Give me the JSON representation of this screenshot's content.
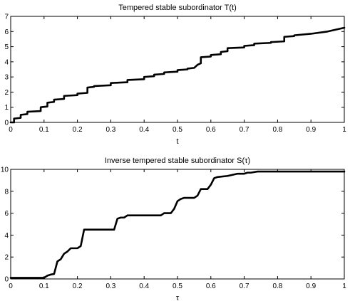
{
  "chart_data": [
    {
      "type": "line",
      "title": "Tempered stable subordinator T(t)",
      "xlabel": "t",
      "ylabel": "",
      "xlim": [
        0,
        1
      ],
      "ylim": [
        0,
        7
      ],
      "xticks": [
        "0",
        "0.1",
        "0.2",
        "0.3",
        "0.4",
        "0.5",
        "0.6",
        "0.7",
        "0.8",
        "0.9",
        "1"
      ],
      "yticks": [
        "0",
        "1",
        "2",
        "3",
        "4",
        "5",
        "6",
        "7"
      ],
      "grid": false,
      "series": [
        {
          "x": [
            0,
            0.01,
            0.01,
            0.03,
            0.03,
            0.05,
            0.05,
            0.09,
            0.09,
            0.11,
            0.11,
            0.13,
            0.13,
            0.16,
            0.16,
            0.2,
            0.2,
            0.23,
            0.23,
            0.25,
            0.25,
            0.3,
            0.3,
            0.35,
            0.35,
            0.4,
            0.4,
            0.43,
            0.43,
            0.46,
            0.46,
            0.5,
            0.5,
            0.53,
            0.53,
            0.55,
            0.56,
            0.57,
            0.57,
            0.6,
            0.6,
            0.63,
            0.63,
            0.65,
            0.65,
            0.7,
            0.7,
            0.73,
            0.73,
            0.78,
            0.78,
            0.82,
            0.82,
            0.85,
            0.85,
            0.9,
            0.95,
            0.97,
            1.0
          ],
          "y": [
            0,
            0,
            0.25,
            0.3,
            0.5,
            0.55,
            0.7,
            0.75,
            1.0,
            1.05,
            1.3,
            1.35,
            1.5,
            1.55,
            1.75,
            1.8,
            1.9,
            1.95,
            2.3,
            2.35,
            2.4,
            2.45,
            2.6,
            2.65,
            2.8,
            2.85,
            3.0,
            3.05,
            3.15,
            3.2,
            3.3,
            3.35,
            3.45,
            3.5,
            3.55,
            3.6,
            3.8,
            3.9,
            4.3,
            4.35,
            4.45,
            4.5,
            4.65,
            4.7,
            4.9,
            4.95,
            5.05,
            5.1,
            5.2,
            5.25,
            5.3,
            5.35,
            5.65,
            5.7,
            5.75,
            5.85,
            6.0,
            6.1,
            6.25
          ]
        }
      ]
    },
    {
      "type": "line",
      "title": "Inverse tempered stable subordinator S(τ)",
      "xlabel": "τ",
      "ylabel": "",
      "xlim": [
        0,
        1
      ],
      "ylim": [
        0,
        10
      ],
      "xticks": [
        "0",
        "0.1",
        "0.2",
        "0.3",
        "0.4",
        "0.5",
        "0.6",
        "0.7",
        "0.8",
        "0.9",
        "1"
      ],
      "yticks": [
        "0",
        "2",
        "4",
        "6",
        "8",
        "10"
      ],
      "grid": false,
      "series": [
        {
          "x": [
            0,
            0.1,
            0.11,
            0.12,
            0.13,
            0.14,
            0.15,
            0.16,
            0.17,
            0.18,
            0.2,
            0.21,
            0.22,
            0.31,
            0.32,
            0.33,
            0.34,
            0.35,
            0.45,
            0.46,
            0.48,
            0.49,
            0.5,
            0.51,
            0.52,
            0.55,
            0.56,
            0.57,
            0.59,
            0.6,
            0.61,
            0.62,
            0.65,
            0.68,
            0.7,
            0.71,
            0.72,
            0.74,
            1.0
          ],
          "y": [
            0.1,
            0.1,
            0.3,
            0.4,
            0.45,
            1.6,
            1.8,
            2.3,
            2.5,
            2.8,
            2.8,
            3.0,
            4.5,
            4.5,
            5.5,
            5.6,
            5.6,
            5.8,
            5.8,
            6.0,
            6.0,
            6.4,
            7.1,
            7.3,
            7.4,
            7.4,
            7.6,
            8.2,
            8.2,
            8.6,
            9.2,
            9.3,
            9.4,
            9.6,
            9.6,
            9.7,
            9.7,
            9.8,
            9.8
          ]
        }
      ]
    }
  ]
}
